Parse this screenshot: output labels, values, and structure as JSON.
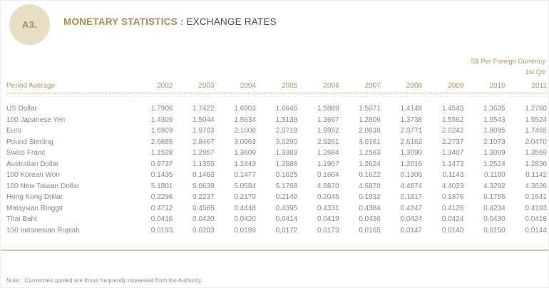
{
  "header": {
    "badge": "A3.",
    "title_bold": "MONETARY STATISTICS :",
    "title_regular": "EXCHANGE RATES",
    "unit_label": "S$ Per Foreign Currency",
    "qtr_label": "1st Qtr"
  },
  "colors": {
    "gold": "#a98c4e",
    "badge_bg": "#e8dec3",
    "data_gray": "#878787",
    "divider_tan": "#dccba1"
  },
  "table": {
    "row_header": "Period Average",
    "years": [
      "2002",
      "2003",
      "2004",
      "2005",
      "2006",
      "2007",
      "2008",
      "2009",
      "2010",
      "2011"
    ],
    "rows": [
      {
        "label": "US Dollar",
        "values": [
          "1.7906",
          "1.7422",
          "1.6903",
          "1.6646",
          "1.5889",
          "1.5071",
          "1.4148",
          "1.4545",
          "1.3635",
          "1.2780"
        ]
      },
      {
        "label": "100 Japanese Yen",
        "values": [
          "1.4309",
          "1.5044",
          "1.5634",
          "1.5138",
          "1.3667",
          "1.2806",
          "1.3738",
          "1.5562",
          "1.5543",
          "1.5524"
        ]
      },
      {
        "label": "Euro",
        "values": [
          "1.6909",
          "1.9703",
          "2.1008",
          "2.0719",
          "1.9952",
          "2.0638",
          "2.0771",
          "2.0242",
          "1.8095",
          "1.7465"
        ]
      },
      {
        "label": "Pound Sterling",
        "values": [
          "2.6885",
          "2.8467",
          "3.0963",
          "3.0290",
          "2.9261",
          "3.0161",
          "2.6162",
          "2.2737",
          "2.1073",
          "2.0470"
        ]
      },
      {
        "label": "Swiss Franc",
        "values": [
          "1.1528",
          "1.2957",
          "1.3609",
          "1.3383",
          "1.2684",
          "1.2563",
          "1.3090",
          "1.3407",
          "1.3089",
          "1.3569"
        ]
      },
      {
        "label": "Australian Dollar",
        "values": [
          "0.9737",
          "1.1355",
          "1.2443",
          "1.2686",
          "1.1967",
          "1.2624",
          "1.2016",
          "1.1473",
          "1.2524",
          "1.2836"
        ]
      },
      {
        "label": "100 Korean Won",
        "values": [
          "0.1435",
          "0.1463",
          "0.1477",
          "0.1625",
          "0.1664",
          "0.1622",
          "0.1306",
          "0.1143",
          "0.1180",
          "0.1142"
        ]
      },
      {
        "label": "100 New Taiwan Dollar",
        "values": [
          "5.1801",
          "5.0639",
          "5.0584",
          "5.1768",
          "4.8870",
          "4.5870",
          "4.4874",
          "4.4023",
          "4.3292",
          "4.3626"
        ]
      },
      {
        "label": "Hong Kong Dollar",
        "values": [
          "0.2296",
          "0.2237",
          "0.2170",
          "0.2140",
          "0.2045",
          "0.1932",
          "0.1817",
          "0.1876",
          "0.1755",
          "0.1641"
        ]
      },
      {
        "label": "Malaysian Ringgit",
        "values": [
          "0.4712",
          "0.4585",
          "0.4448",
          "0.4395",
          "0.4331",
          "0.4384",
          "0.4247",
          "0.4126",
          "0.4234",
          "0.4193"
        ]
      },
      {
        "label": "Thai Baht",
        "values": [
          "0.0416",
          "0.0420",
          "0.0420",
          "0.0414",
          "0.0419",
          "0.0436",
          "0.0424",
          "0.0424",
          "0.0430",
          "0.0418"
        ]
      },
      {
        "label": "100 Indonesian Rupiah",
        "values": [
          "0.0193",
          "0.0203",
          "0.0189",
          "0.0172",
          "0.0173",
          "0.0165",
          "0.0147",
          "0.0140",
          "0.0150",
          "0.0144"
        ]
      }
    ]
  },
  "footnote": {
    "note_label": "Note:",
    "note_text": "Currencies quoted are those frequently requested from the Authority."
  }
}
